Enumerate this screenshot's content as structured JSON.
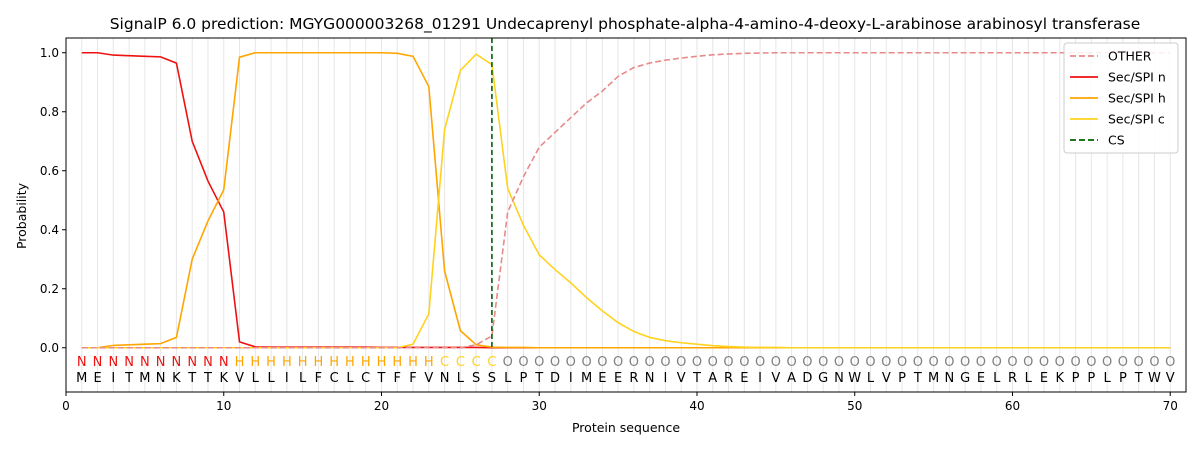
{
  "chart_data": {
    "type": "line",
    "title": "SignalP 6.0 prediction: MGYG000003268_01291 Undecaprenyl phosphate-alpha-4-amino-4-deoxy-L-arabinose arabinosyl transferase",
    "xlabel": "Protein sequence",
    "ylabel": "Probability",
    "xlim": [
      0,
      71
    ],
    "ylim": [
      -0.15,
      1.05
    ],
    "xticks": [
      0,
      10,
      20,
      30,
      40,
      50,
      60,
      70
    ],
    "yticks": [
      0.0,
      0.2,
      0.4,
      0.6,
      0.8,
      1.0
    ],
    "grid": "vertical lines at each residue",
    "legend_position": "top-right",
    "x": [
      1,
      2,
      3,
      4,
      5,
      6,
      7,
      8,
      9,
      10,
      11,
      12,
      13,
      14,
      15,
      16,
      17,
      18,
      19,
      20,
      21,
      22,
      23,
      24,
      25,
      26,
      27,
      28,
      29,
      30,
      31,
      32,
      33,
      34,
      35,
      36,
      37,
      38,
      39,
      40,
      41,
      42,
      43,
      44,
      45,
      46,
      47,
      48,
      49,
      50,
      51,
      52,
      53,
      54,
      55,
      56,
      57,
      58,
      59,
      60,
      61,
      62,
      63,
      64,
      65,
      66,
      67,
      68,
      69,
      70
    ],
    "sequence": [
      "M",
      "E",
      "I",
      "T",
      "M",
      "N",
      "K",
      "T",
      "T",
      "K",
      "V",
      "L",
      "L",
      "I",
      "L",
      "F",
      "C",
      "L",
      "C",
      "T",
      "F",
      "F",
      "V",
      "N",
      "L",
      "S",
      "S",
      "L",
      "P",
      "T",
      "D",
      "I",
      "M",
      "E",
      "E",
      "R",
      "N",
      "I",
      "V",
      "T",
      "A",
      "R",
      "E",
      "I",
      "V",
      "A",
      "D",
      "G",
      "N",
      "W",
      "L",
      "V",
      "P",
      "T",
      "M",
      "N",
      "G",
      "E",
      "L",
      "R",
      "L",
      "E",
      "K",
      "P",
      "P",
      "L",
      "P",
      "T",
      "W",
      "V"
    ],
    "states": [
      "N",
      "N",
      "N",
      "N",
      "N",
      "N",
      "N",
      "N",
      "N",
      "N",
      "H",
      "H",
      "H",
      "H",
      "H",
      "H",
      "H",
      "H",
      "H",
      "H",
      "H",
      "H",
      "H",
      "C",
      "C",
      "C",
      "C",
      "O",
      "O",
      "O",
      "O",
      "O",
      "O",
      "O",
      "O",
      "O",
      "O",
      "O",
      "O",
      "O",
      "O",
      "O",
      "O",
      "O",
      "O",
      "O",
      "O",
      "O",
      "O",
      "O",
      "O",
      "O",
      "O",
      "O",
      "O",
      "O",
      "O",
      "O",
      "O",
      "O",
      "O",
      "O",
      "O",
      "O",
      "O",
      "O",
      "O",
      "O",
      "O",
      "O"
    ],
    "state_colors": {
      "N": "#ee1111",
      "H": "#ffa500",
      "C": "#ffd21f",
      "O": "#808080"
    },
    "series": [
      {
        "name": "OTHER",
        "color": "#e88a8a",
        "dash": "dashed",
        "values": [
          0,
          0,
          0,
          0,
          0,
          0,
          0,
          0,
          0,
          0,
          0,
          0,
          0,
          0,
          0,
          0,
          0,
          0,
          0,
          0,
          0,
          0,
          0,
          0,
          0,
          0.01,
          0.04,
          0.46,
          0.58,
          0.68,
          0.73,
          0.78,
          0.83,
          0.87,
          0.92,
          0.95,
          0.965,
          0.975,
          0.982,
          0.988,
          0.993,
          0.996,
          0.998,
          0.999,
          1,
          1,
          1,
          1,
          1,
          1,
          1,
          1,
          1,
          1,
          1,
          1,
          1,
          1,
          1,
          1,
          1,
          1,
          1,
          1,
          1,
          1,
          1,
          1,
          1,
          1
        ]
      },
      {
        "name": "Sec/SPI n",
        "color": "#ee1111",
        "dash": "solid",
        "values": [
          1.0,
          1.0,
          0.992,
          0.99,
          0.988,
          0.986,
          0.965,
          0.7,
          0.565,
          0.46,
          0.02,
          0.003,
          0.002,
          0.002,
          0.002,
          0.002,
          0.002,
          0.002,
          0.002,
          0.001,
          0.001,
          0.001,
          0.001,
          0.001,
          0.001,
          0.001,
          0,
          0,
          0,
          0,
          0,
          0,
          0,
          0,
          0,
          0,
          0,
          0,
          0,
          0,
          0,
          0,
          0,
          0,
          0,
          0,
          0,
          0,
          0,
          0,
          0,
          0,
          0,
          0,
          0,
          0,
          0,
          0,
          0,
          0,
          0,
          0,
          0,
          0,
          0,
          0,
          0,
          0,
          0,
          0
        ]
      },
      {
        "name": "Sec/SPI h",
        "color": "#ffa500",
        "dash": "solid",
        "values": [
          0,
          0,
          0.008,
          0.01,
          0.012,
          0.014,
          0.035,
          0.3,
          0.43,
          0.535,
          0.985,
          1.0,
          1.0,
          1.0,
          1.0,
          1.0,
          1.0,
          1.0,
          1.0,
          1.0,
          0.998,
          0.988,
          0.885,
          0.26,
          0.058,
          0.01,
          0.002,
          0.001,
          0.001,
          0,
          0,
          0,
          0,
          0,
          0,
          0,
          0,
          0,
          0,
          0,
          0,
          0,
          0,
          0,
          0,
          0,
          0,
          0,
          0,
          0,
          0,
          0,
          0,
          0,
          0,
          0,
          0,
          0,
          0,
          0,
          0,
          0,
          0,
          0,
          0,
          0,
          0,
          0,
          0,
          0
        ]
      },
      {
        "name": "Sec/SPI c",
        "color": "#ffd21f",
        "dash": "solid",
        "values": [
          0,
          0,
          0,
          0,
          0,
          0,
          0,
          0,
          0,
          0,
          0,
          0,
          0,
          0,
          0,
          0,
          0,
          0,
          0,
          0,
          0,
          0.012,
          0.115,
          0.74,
          0.94,
          0.995,
          0.96,
          0.54,
          0.415,
          0.315,
          0.265,
          0.22,
          0.17,
          0.125,
          0.085,
          0.055,
          0.035,
          0.024,
          0.017,
          0.012,
          0.007,
          0.004,
          0.002,
          0.001,
          0.001,
          0,
          0,
          0,
          0,
          0,
          0,
          0,
          0,
          0,
          0,
          0,
          0,
          0,
          0,
          0,
          0,
          0,
          0,
          0,
          0,
          0,
          0,
          0,
          0,
          0
        ]
      }
    ],
    "cs_marker": {
      "name": "CS",
      "x": 27,
      "color": "#006400",
      "dash": "dashed"
    }
  }
}
